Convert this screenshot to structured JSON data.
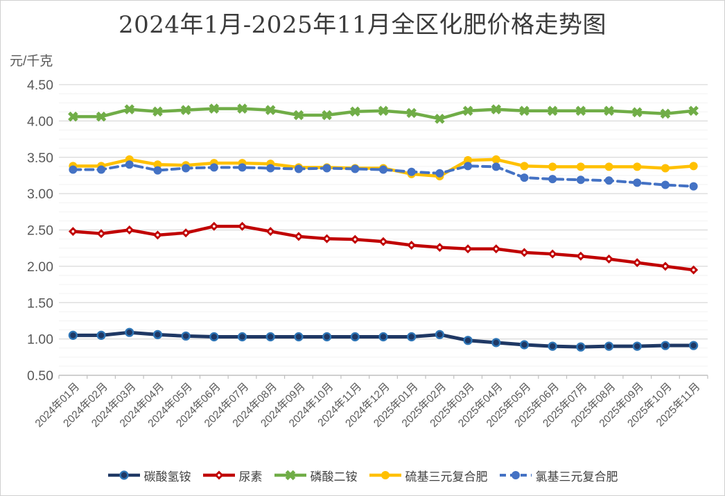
{
  "title": "2024年1月-2025年11月全区化肥价格走势图",
  "y_axis_unit_label": "元/千克",
  "chart_data": {
    "type": "line",
    "title": "2024年1月-2025年11月全区化肥价格走势图",
    "ylabel": "元/千克",
    "xlabel": "",
    "ylim": [
      0.5,
      4.5
    ],
    "y_major_unit": 0.5,
    "y_minor_unit": 0.125,
    "grid": true,
    "legend_position": "bottom",
    "y_tick_labels": [
      "4.50",
      "4.00",
      "3.50",
      "3.00",
      "2.50",
      "2.00",
      "1.50",
      "1.00",
      "0.50"
    ],
    "categories": [
      "2024年01月",
      "2024年02月",
      "2024年03月",
      "2024年04月",
      "2024年05月",
      "2024年06月",
      "2024年07月",
      "2024年08月",
      "2024年09月",
      "2024年10月",
      "2024年11月",
      "2024年12月",
      "2025年01月",
      "2025年02月",
      "2025年03月",
      "2025年04月",
      "2025年05月",
      "2025年06月",
      "2025年07月",
      "2025年08月",
      "2025年09月",
      "2025年10月",
      "2025年11月"
    ],
    "series": [
      {
        "name": "碳酸氢铵",
        "color": "#1F3864",
        "marker": "circle-ringed",
        "marker_ring_color": "#2E75B6",
        "line_style": "solid",
        "values": [
          1.05,
          1.05,
          1.09,
          1.06,
          1.04,
          1.03,
          1.03,
          1.03,
          1.03,
          1.03,
          1.03,
          1.03,
          1.03,
          1.06,
          0.98,
          0.95,
          0.92,
          0.9,
          0.89,
          0.9,
          0.9,
          0.91,
          0.91
        ]
      },
      {
        "name": "尿素",
        "color": "#C00000",
        "marker": "diamond",
        "line_style": "solid",
        "values": [
          2.48,
          2.45,
          2.5,
          2.43,
          2.46,
          2.55,
          2.55,
          2.48,
          2.41,
          2.38,
          2.37,
          2.34,
          2.29,
          2.26,
          2.24,
          2.24,
          2.19,
          2.17,
          2.14,
          2.1,
          2.05,
          2.0,
          1.95
        ]
      },
      {
        "name": "磷酸二铵",
        "color": "#70AD47",
        "marker": "x",
        "line_style": "solid",
        "values": [
          4.06,
          4.06,
          4.16,
          4.13,
          4.15,
          4.17,
          4.17,
          4.15,
          4.08,
          4.08,
          4.13,
          4.14,
          4.11,
          4.03,
          4.14,
          4.16,
          4.14,
          4.14,
          4.14,
          4.14,
          4.12,
          4.1,
          4.14
        ]
      },
      {
        "name": "硫基三元复合肥",
        "color": "#FFC000",
        "marker": "circle",
        "line_style": "solid",
        "values": [
          3.38,
          3.38,
          3.47,
          3.4,
          3.39,
          3.42,
          3.42,
          3.41,
          3.36,
          3.36,
          3.35,
          3.35,
          3.27,
          3.24,
          3.46,
          3.47,
          3.38,
          3.37,
          3.37,
          3.37,
          3.37,
          3.35,
          3.38
        ]
      },
      {
        "name": "氯基三元复合肥",
        "color": "#4472C4",
        "marker": "circle",
        "line_style": "dashed",
        "values": [
          3.33,
          3.33,
          3.4,
          3.32,
          3.35,
          3.36,
          3.36,
          3.35,
          3.34,
          3.35,
          3.34,
          3.33,
          3.3,
          3.28,
          3.38,
          3.37,
          3.22,
          3.2,
          3.19,
          3.18,
          3.15,
          3.12,
          3.1
        ]
      }
    ],
    "colors": {
      "gridline_major": "#D9D9D9",
      "gridline_minor": "#F2F2F2",
      "axis_line": "#BFBFBF",
      "axis_text": "#595959",
      "title_text": "#3B3B3B"
    }
  }
}
